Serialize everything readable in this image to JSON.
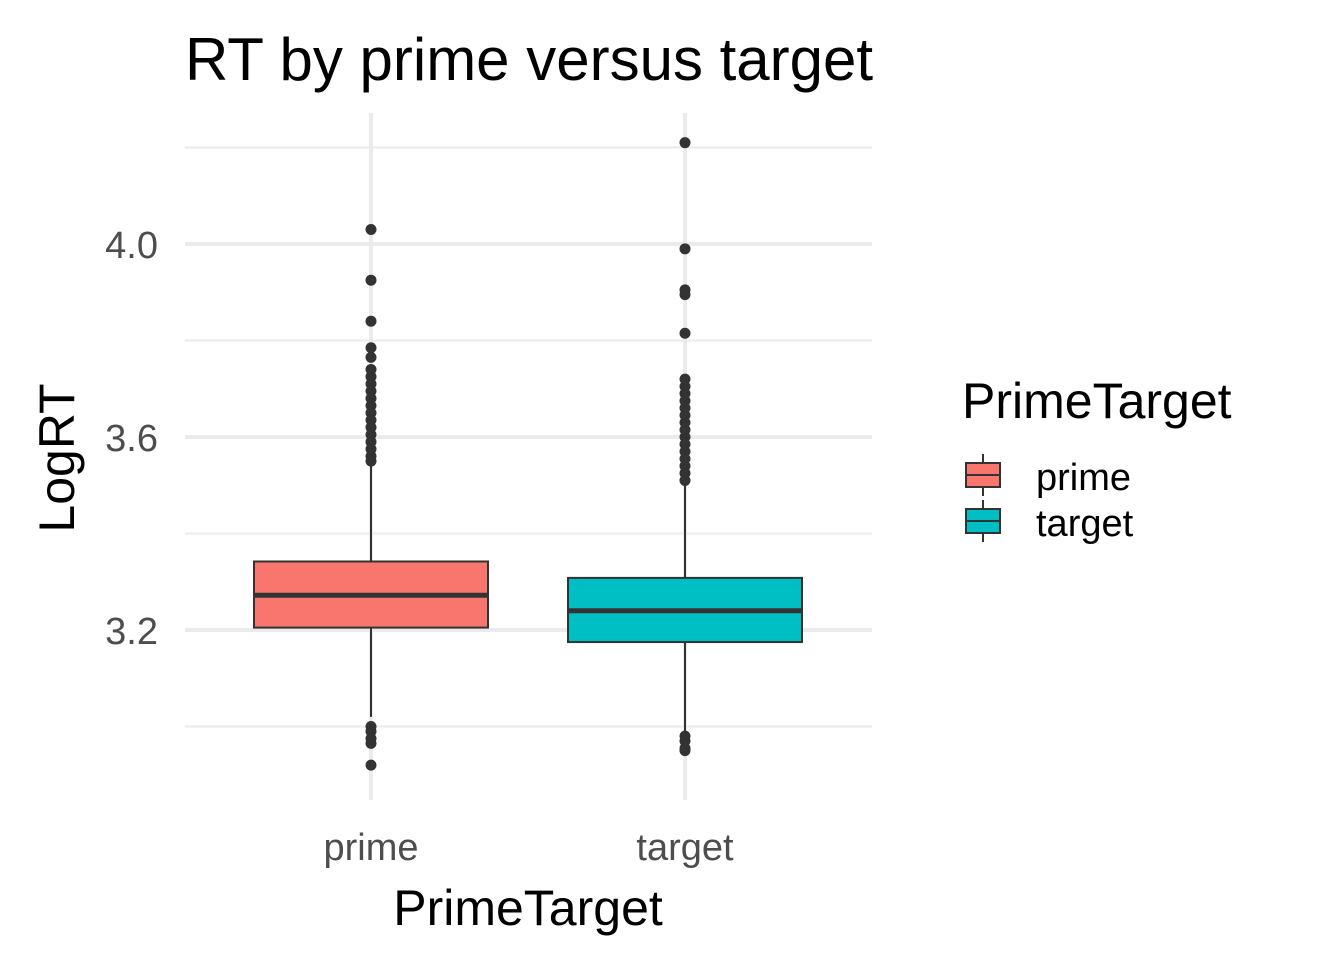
{
  "chart_data": {
    "type": "boxplot",
    "title": "RT by prime versus target",
    "xlabel": "PrimeTarget",
    "ylabel": "LogRT",
    "categories": [
      "prime",
      "target"
    ],
    "ylim": [
      2.91,
      4.23
    ],
    "yticks": [
      3.2,
      3.6,
      4.0
    ],
    "ytick_labels": [
      "3.2",
      "3.6",
      "4.0"
    ],
    "yminor": [
      3.0,
      3.4,
      3.8,
      4.2
    ],
    "grid": true,
    "legend": {
      "title": "PrimeTarget",
      "position": "right",
      "entries": [
        {
          "label": "prime",
          "color": "#F8766D"
        },
        {
          "label": "target",
          "color": "#00BFC4"
        }
      ]
    },
    "series": [
      {
        "name": "prime",
        "color": "#F8766D",
        "whisker_low": 3.02,
        "q1": 3.205,
        "median": 3.272,
        "q3": 3.342,
        "whisker_high": 3.545,
        "outliers": [
          4.03,
          3.925,
          3.84,
          3.785,
          3.765,
          3.74,
          3.725,
          3.71,
          3.695,
          3.68,
          3.665,
          3.65,
          3.635,
          3.62,
          3.605,
          3.59,
          3.575,
          3.56,
          3.55,
          3.0,
          2.99,
          2.975,
          2.965,
          2.92
        ]
      },
      {
        "name": "target",
        "color": "#00BFC4",
        "whisker_low": 2.985,
        "q1": 3.175,
        "median": 3.24,
        "q3": 3.308,
        "whisker_high": 3.5,
        "outliers": [
          4.21,
          3.99,
          3.905,
          3.895,
          3.815,
          3.72,
          3.705,
          3.69,
          3.675,
          3.66,
          3.645,
          3.63,
          3.615,
          3.6,
          3.585,
          3.57,
          3.555,
          3.54,
          3.525,
          3.51,
          2.98,
          2.97,
          2.955,
          2.95
        ]
      }
    ]
  }
}
